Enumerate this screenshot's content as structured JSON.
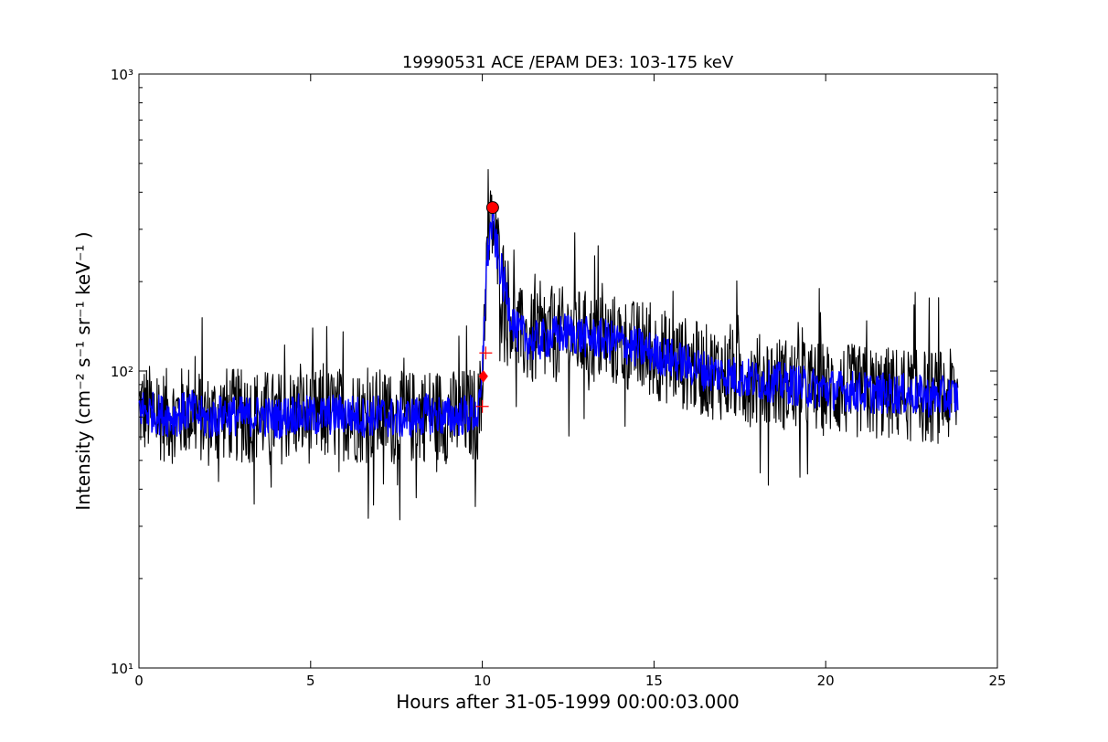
{
  "chart_data": {
    "type": "line",
    "title": "19990531 ACE /EPAM DE3: 103-175 keV",
    "xlabel": "Hours after 31-05-1999 00:00:03.000",
    "ylabel": "Intensity (cm⁻² s⁻¹ sr⁻¹ keV⁻¹ )",
    "xlim": [
      0,
      25
    ],
    "ylim": [
      10,
      1000
    ],
    "yscale": "log",
    "grid": false,
    "xticks": [
      0,
      5,
      10,
      15,
      20,
      25
    ],
    "xtick_labels": [
      "0",
      "5",
      "10",
      "15",
      "20",
      "25"
    ],
    "yticks": [
      10,
      100,
      1000
    ],
    "ytick_labels": [
      "10¹",
      "10²",
      "10³"
    ],
    "series": [
      {
        "color": "#000000",
        "style": "raw",
        "x": [
          0.0,
          0.5,
          1.0,
          1.5,
          2.0,
          2.5,
          3.0,
          3.5,
          4.0,
          4.5,
          5.0,
          5.5,
          6.0,
          6.5,
          7.0,
          7.5,
          8.0,
          8.5,
          9.0,
          9.5,
          9.9,
          10.0,
          10.1,
          10.2,
          10.3,
          10.4,
          10.6,
          10.8,
          11.0,
          11.5,
          12.0,
          12.5,
          13.0,
          13.5,
          14.0,
          14.5,
          15.0,
          15.5,
          16.0,
          16.5,
          17.0,
          17.5,
          18.0,
          18.5,
          19.0,
          19.5,
          20.0,
          20.5,
          21.0,
          21.5,
          22.0,
          22.5,
          23.0,
          23.5,
          23.85
        ],
        "y": [
          75,
          72,
          70,
          74,
          68,
          72,
          70,
          71,
          69,
          72,
          70,
          71,
          72,
          70,
          71,
          69,
          70,
          72,
          70,
          71,
          72,
          90,
          200,
          280,
          320,
          260,
          200,
          160,
          135,
          125,
          130,
          135,
          130,
          128,
          125,
          120,
          115,
          110,
          105,
          100,
          98,
          95,
          93,
          92,
          90,
          88,
          87,
          86,
          85,
          84,
          84,
          83,
          82,
          82,
          82
        ]
      },
      {
        "color": "#0000ff",
        "style": "smoothed",
        "x": [
          0.0,
          0.5,
          1.0,
          1.5,
          2.0,
          2.5,
          3.0,
          3.5,
          4.0,
          4.5,
          5.0,
          5.5,
          6.0,
          6.5,
          7.0,
          7.5,
          8.0,
          8.5,
          9.0,
          9.5,
          9.9,
          10.0,
          10.1,
          10.2,
          10.3,
          10.4,
          10.6,
          10.8,
          11.0,
          11.5,
          12.0,
          12.5,
          13.0,
          13.5,
          14.0,
          14.5,
          15.0,
          15.5,
          16.0,
          16.5,
          17.0,
          17.5,
          18.0,
          18.5,
          19.0,
          19.5,
          20.0,
          20.5,
          21.0,
          21.5,
          22.0,
          22.5,
          23.0,
          23.5,
          23.85
        ],
        "y": [
          75,
          72,
          70,
          74,
          68,
          72,
          70,
          71,
          69,
          72,
          70,
          71,
          72,
          70,
          71,
          69,
          70,
          72,
          70,
          71,
          72,
          90,
          200,
          280,
          320,
          260,
          200,
          160,
          135,
          125,
          130,
          135,
          130,
          128,
          125,
          120,
          115,
          110,
          105,
          100,
          98,
          95,
          93,
          92,
          90,
          88,
          87,
          86,
          85,
          84,
          84,
          83,
          82,
          82,
          82
        ]
      }
    ],
    "markers": [
      {
        "shape": "circle",
        "x": 10.3,
        "y": 355,
        "color": "#ff0000"
      },
      {
        "shape": "diamond",
        "x": 10.03,
        "y": 96,
        "color": "#ff0000"
      },
      {
        "shape": "plus",
        "x": 10.1,
        "y": 115,
        "color": "#ff0000"
      },
      {
        "shape": "plus",
        "x": 10.0,
        "y": 76,
        "color": "#ff0000"
      }
    ]
  }
}
